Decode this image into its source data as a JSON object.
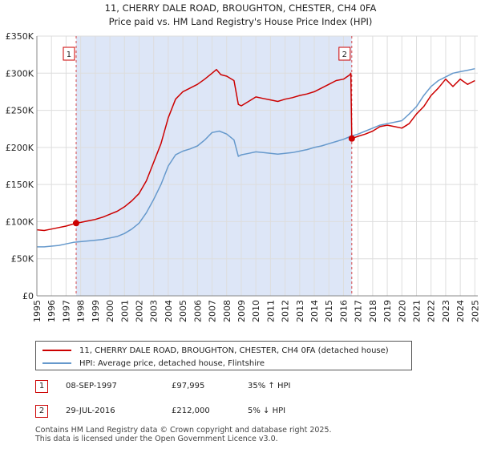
{
  "chart_data": {
    "type": "line",
    "title": "11, CHERRY DALE ROAD, BROUGHTON, CHESTER, CH4 0FA",
    "subtitle": "Price paid vs. HM Land Registry's House Price Index (HPI)",
    "xlabel": "",
    "ylabel": "",
    "xlim": [
      1995,
      2025.2
    ],
    "ylim": [
      0,
      350000
    ],
    "grid": true,
    "x_ticks": [
      1995,
      1996,
      1997,
      1998,
      1999,
      2000,
      2001,
      2002,
      2003,
      2004,
      2005,
      2006,
      2007,
      2008,
      2009,
      2010,
      2011,
      2012,
      2013,
      2014,
      2015,
      2016,
      2017,
      2018,
      2019,
      2020,
      2021,
      2022,
      2023,
      2024,
      2025
    ],
    "x_tick_labels": [
      "1995",
      "1996",
      "1997",
      "1998",
      "1999",
      "2000",
      "2001",
      "2002",
      "2003",
      "2004",
      "2005",
      "2006",
      "2007",
      "2008",
      "2009",
      "2010",
      "2011",
      "2012",
      "2013",
      "2014",
      "2015",
      "2016",
      "2017",
      "2018",
      "2019",
      "2020",
      "2021",
      "2022",
      "2023",
      "2024",
      "2025"
    ],
    "y_ticks": [
      0,
      50000,
      100000,
      150000,
      200000,
      250000,
      300000,
      350000
    ],
    "y_tick_labels": [
      "£0",
      "£50K",
      "£100K",
      "£150K",
      "£200K",
      "£250K",
      "£300K",
      "£350K"
    ],
    "shaded_period": [
      1997.69,
      2016.57
    ],
    "series": [
      {
        "name": "11, CHERRY DALE ROAD, BROUGHTON, CHESTER, CH4 0FA (detached house)",
        "color": "#cc0000",
        "x": [
          1995,
          1995.5,
          1996,
          1996.5,
          1997,
          1997.69,
          1998,
          1998.5,
          1999,
          1999.5,
          2000,
          2000.5,
          2001,
          2001.5,
          2002,
          2002.5,
          2003,
          2003.5,
          2004,
          2004.5,
          2005,
          2005.5,
          2006,
          2006.5,
          2007,
          2007.3,
          2007.6,
          2008,
          2008.5,
          2008.8,
          2009,
          2009.5,
          2010,
          2010.5,
          2011,
          2011.5,
          2012,
          2012.5,
          2013,
          2013.5,
          2014,
          2014.5,
          2015,
          2015.5,
          2016,
          2016.45,
          2016.5,
          2016.57,
          2017,
          2017.5,
          2018,
          2018.5,
          2019,
          2019.5,
          2020,
          2020.5,
          2021,
          2021.5,
          2022,
          2022.5,
          2023,
          2023.5,
          2024,
          2024.5,
          2025
        ],
        "y": [
          89000,
          88000,
          90000,
          92000,
          94000,
          97995,
          99000,
          101000,
          103000,
          106000,
          110000,
          114000,
          120000,
          128000,
          138000,
          155000,
          180000,
          205000,
          240000,
          265000,
          275000,
          280000,
          285000,
          292000,
          300000,
          305000,
          298000,
          296000,
          290000,
          258000,
          256000,
          262000,
          268000,
          266000,
          264000,
          262000,
          265000,
          267000,
          270000,
          272000,
          275000,
          280000,
          285000,
          290000,
          292000,
          298000,
          300000,
          212000,
          215000,
          218000,
          222000,
          228000,
          230000,
          228000,
          226000,
          232000,
          245000,
          255000,
          270000,
          280000,
          292000,
          282000,
          292000,
          285000,
          290000
        ]
      },
      {
        "name": "HPI: Average price, detached house, Flintshire",
        "color": "#6699cc",
        "x": [
          1995,
          1995.5,
          1996,
          1996.5,
          1997,
          1997.5,
          1998,
          1998.5,
          1999,
          1999.5,
          2000,
          2000.5,
          2001,
          2001.5,
          2002,
          2002.5,
          2003,
          2003.5,
          2004,
          2004.5,
          2005,
          2005.5,
          2006,
          2006.5,
          2007,
          2007.5,
          2008,
          2008.5,
          2008.8,
          2009,
          2009.5,
          2010,
          2010.5,
          2011,
          2011.5,
          2012,
          2012.5,
          2013,
          2013.5,
          2014,
          2014.5,
          2015,
          2015.5,
          2016,
          2016.5,
          2017,
          2017.5,
          2018,
          2018.5,
          2019,
          2019.5,
          2020,
          2020.5,
          2021,
          2021.5,
          2022,
          2022.5,
          2023,
          2023.5,
          2024,
          2024.5,
          2025
        ],
        "y": [
          66000,
          66000,
          67000,
          68000,
          70000,
          72000,
          73000,
          74000,
          75000,
          76000,
          78000,
          80000,
          84000,
          90000,
          98000,
          112000,
          130000,
          150000,
          175000,
          190000,
          195000,
          198000,
          202000,
          210000,
          220000,
          222000,
          218000,
          210000,
          188000,
          190000,
          192000,
          194000,
          193000,
          192000,
          191000,
          192000,
          193000,
          195000,
          197000,
          200000,
          202000,
          205000,
          208000,
          211000,
          215000,
          218000,
          222000,
          226000,
          230000,
          232000,
          234000,
          236000,
          245000,
          255000,
          270000,
          282000,
          290000,
          295000,
          300000,
          302000,
          304000,
          306000
        ]
      }
    ],
    "sales": [
      {
        "label": "1",
        "x": 1997.69,
        "y": 97995
      },
      {
        "label": "2",
        "x": 2016.57,
        "y": 212000
      }
    ]
  },
  "legend": {
    "property_label": "11, CHERRY DALE ROAD, BROUGHTON, CHESTER, CH4 0FA (detached house)",
    "hpi_label": "HPI: Average price, detached house, Flintshire"
  },
  "sales_table": [
    {
      "num": "1",
      "date": "08-SEP-1997",
      "price": "£97,995",
      "hpi": "35% ↑ HPI"
    },
    {
      "num": "2",
      "date": "29-JUL-2016",
      "price": "£212,000",
      "hpi": "5% ↓ HPI"
    }
  ],
  "footer": {
    "line1": "Contains HM Land Registry data © Crown copyright and database right 2025.",
    "line2": "This data is licensed under the Open Government Licence v3.0."
  },
  "colors": {
    "property": "#cc0000",
    "hpi": "#6699cc",
    "shade": "#dde6f7",
    "grid": "#dddddd"
  }
}
